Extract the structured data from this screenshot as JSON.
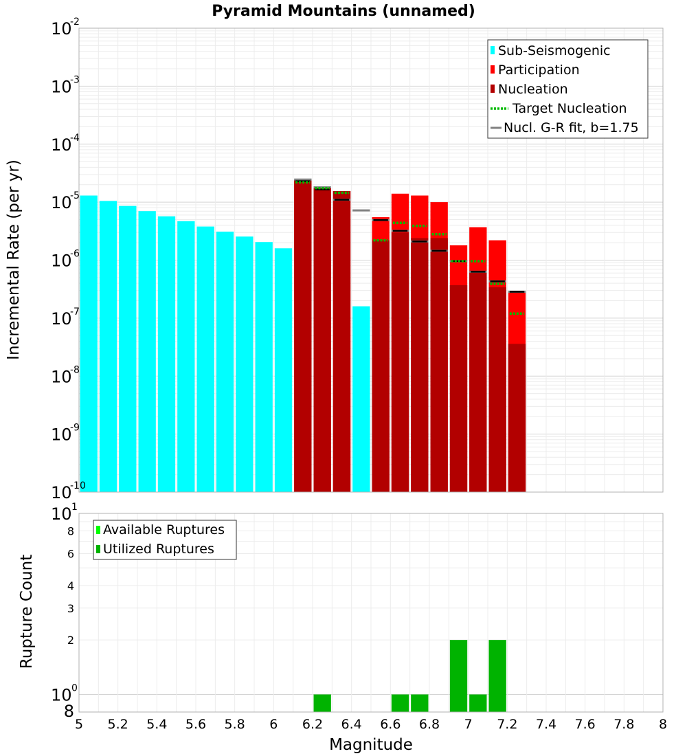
{
  "chart_data": [
    {
      "id": "rates",
      "type": "bar",
      "title": "Pyramid Mountains (unnamed)",
      "xlabel": "",
      "ylabel": "Incremental Rate (per yr)",
      "xlim": [
        5,
        8
      ],
      "ylim_log10": [
        -10,
        -2
      ],
      "y_tick_exponents": [
        "-10",
        "-9",
        "-8",
        "-7",
        "-6",
        "-5",
        "-4",
        "-3",
        "-2"
      ],
      "y_tick_base": "10",
      "bin_width": 0.1,
      "legend": [
        {
          "label": "Sub-Seismogenic",
          "kind": "bar",
          "color": "#00ffff"
        },
        {
          "label": "Participation",
          "kind": "bar",
          "color": "#ff0000"
        },
        {
          "label": "Nucleation",
          "kind": "bar",
          "color": "#b20000"
        },
        {
          "label": "Target Nucleation",
          "kind": "dotted",
          "color": "#00bb00"
        },
        {
          "label": "Nucl. G-R fit, b=1.75",
          "kind": "line",
          "color": "#808080"
        }
      ],
      "series": [
        {
          "name": "Sub-Seismogenic",
          "color": "#00ffff",
          "x": [
            5.05,
            5.15,
            5.25,
            5.35,
            5.45,
            5.55,
            5.65,
            5.75,
            5.85,
            5.95,
            6.05,
            6.45
          ],
          "values": [
            1.3e-05,
            1.05e-05,
            8.6e-06,
            7e-06,
            5.7e-06,
            4.7e-06,
            3.8e-06,
            3.1e-06,
            2.55e-06,
            2.05e-06,
            1.6e-06,
            1.6e-07
          ]
        },
        {
          "name": "Participation",
          "color": "#ff0000",
          "x": [
            6.15,
            6.25,
            6.35,
            6.55,
            6.65,
            6.75,
            6.85,
            6.95,
            7.05,
            7.15,
            7.25
          ],
          "values": [
            2.4e-05,
            1.75e-05,
            1.55e-05,
            5.5e-06,
            1.4e-05,
            1.3e-05,
            1e-05,
            1.8e-06,
            3.7e-06,
            2.2e-06,
            2.8e-07
          ]
        },
        {
          "name": "Nucleation",
          "color": "#b20000",
          "x": [
            6.15,
            6.25,
            6.35,
            6.55,
            6.65,
            6.75,
            6.85,
            6.95,
            7.05,
            7.15,
            7.25
          ],
          "values": [
            2.4e-05,
            1.75e-05,
            1.55e-05,
            2.2e-06,
            3e-06,
            2.4e-06,
            2.4e-06,
            3.7e-07,
            6.6e-07,
            3.4e-07,
            3.6e-08
          ]
        },
        {
          "name": "Target Nucleation",
          "color": "#00bb00",
          "x": [
            6.15,
            6.25,
            6.35,
            6.55,
            6.65,
            6.75,
            6.85,
            6.95,
            7.05,
            7.15,
            7.25
          ],
          "values": [
            2.2e-05,
            1.75e-05,
            1.45e-05,
            2.2e-06,
            4.4e-06,
            3.9e-06,
            2.8e-06,
            9.6e-07,
            9.6e-07,
            3.9e-07,
            1.2e-07
          ]
        },
        {
          "name": "Nucl. G-R fit, b=1.75",
          "color": "#808080",
          "x": [
            6.15,
            6.25,
            6.35,
            6.45,
            6.55,
            6.65,
            6.75,
            6.85,
            6.95,
            7.05,
            7.15,
            7.25
          ],
          "values": [
            2.45e-05,
            1.8e-05,
            1.1e-05,
            7.2e-06,
            4.9e-06,
            3.2e-06,
            2.1e-06,
            1.45e-06,
            9.6e-07,
            6.3e-07,
            4.3e-07,
            2.85e-07
          ]
        },
        {
          "name": "Nucleation (black marks)",
          "color": "#000000",
          "x": [
            6.15,
            6.25,
            6.35,
            6.55,
            6.65,
            6.75,
            6.85,
            6.95,
            7.05,
            7.15,
            7.25
          ],
          "values": [
            2.3e-05,
            1.65e-05,
            1.1e-05,
            4.9e-06,
            3.2e-06,
            2.1e-06,
            1.45e-06,
            9.6e-07,
            6.3e-07,
            4.3e-07,
            2.85e-07
          ]
        }
      ]
    },
    {
      "id": "counts",
      "type": "bar",
      "xlabel": "Magnitude",
      "ylabel": "Rupture Count",
      "xlim": [
        5,
        8
      ],
      "ylim": [
        0.8,
        10
      ],
      "x_ticks": [
        "5",
        "5.2",
        "5.4",
        "5.6",
        "5.8",
        "6",
        "6.2",
        "6.4",
        "6.6",
        "6.8",
        "7",
        "7.2",
        "7.4",
        "7.6",
        "7.8",
        "8"
      ],
      "y_minor_ticks": [
        {
          "value": 2,
          "label": "2"
        },
        {
          "value": 3,
          "label": "3"
        },
        {
          "value": 4,
          "label": "4"
        },
        {
          "value": 6,
          "label": "6"
        },
        {
          "value": 8,
          "label": "8"
        }
      ],
      "y_major_ticks": [
        {
          "value": 1,
          "base": "10",
          "exp": "0"
        },
        {
          "value": 10,
          "base": "10",
          "exp": "1"
        }
      ],
      "y_bottom_label": "8",
      "legend": [
        {
          "label": "Available Ruptures",
          "color": "#00ff00"
        },
        {
          "label": "Utilized Ruptures",
          "color": "#00b300"
        }
      ],
      "series": [
        {
          "name": "Utilized Ruptures",
          "color": "#00b300",
          "x": [
            6.25,
            6.65,
            6.75,
            6.95,
            7.05,
            7.15
          ],
          "values": [
            1,
            1,
            1,
            2,
            1,
            2
          ]
        }
      ]
    }
  ]
}
